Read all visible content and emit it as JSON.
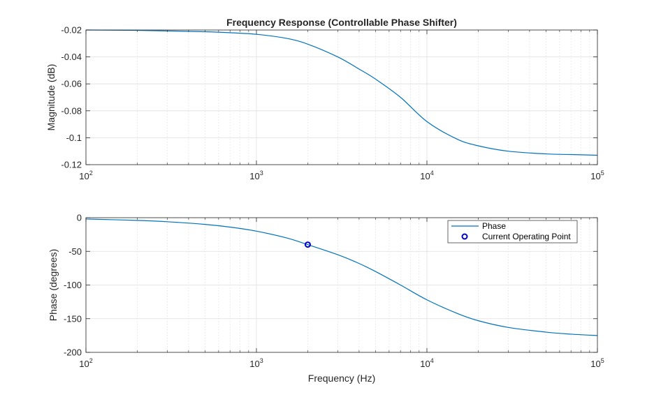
{
  "chart_data": [
    {
      "type": "line",
      "title": "Frequency Response (Controllable Phase Shifter)",
      "xlabel": "",
      "ylabel": "Magnitude (dB)",
      "xscale": "log",
      "xlim": [
        100,
        100000
      ],
      "ylim": [
        -0.12,
        -0.02
      ],
      "grid": true,
      "x_ticks": [
        {
          "label": "10",
          "exp": "2"
        },
        {
          "label": "10",
          "exp": "3"
        },
        {
          "label": "10",
          "exp": "4"
        },
        {
          "label": "10",
          "exp": "5"
        }
      ],
      "y_ticks": [
        "-0.02",
        "-0.04",
        "-0.06",
        "-0.08",
        "-0.1",
        "-0.12"
      ],
      "series": [
        {
          "color": "#0072bd",
          "x": [
            100,
            200,
            300,
            500,
            700,
            1000,
            1500,
            2000,
            3000,
            4000,
            5000,
            7000,
            10000,
            15000,
            20000,
            30000,
            50000,
            70000,
            100000
          ],
          "y": [
            -0.02,
            -0.0203,
            -0.0207,
            -0.0213,
            -0.022,
            -0.0232,
            -0.0262,
            -0.0305,
            -0.04,
            -0.049,
            -0.0565,
            -0.07,
            -0.088,
            -0.101,
            -0.106,
            -0.11,
            -0.112,
            -0.1125,
            -0.113
          ]
        }
      ]
    },
    {
      "type": "line",
      "title": "",
      "xlabel": "Frequency (Hz)",
      "ylabel": "Phase (degrees)",
      "xscale": "log",
      "xlim": [
        100,
        100000
      ],
      "ylim": [
        -200,
        0
      ],
      "grid": true,
      "legend": "top-right",
      "x_ticks": [
        {
          "label": "10",
          "exp": "2"
        },
        {
          "label": "10",
          "exp": "3"
        },
        {
          "label": "10",
          "exp": "4"
        },
        {
          "label": "10",
          "exp": "5"
        }
      ],
      "y_ticks": [
        "0",
        "-50",
        "-100",
        "-150",
        "-200"
      ],
      "series": [
        {
          "name": "Phase",
          "color": "#0072bd",
          "x": [
            100,
            200,
            300,
            500,
            700,
            1000,
            1500,
            2000,
            3000,
            4000,
            5000,
            7000,
            10000,
            15000,
            20000,
            30000,
            50000,
            70000,
            100000
          ],
          "y": [
            -2,
            -4,
            -6,
            -10,
            -14,
            -20,
            -30,
            -40,
            -55,
            -68,
            -80,
            -100,
            -122,
            -142,
            -153,
            -163,
            -170,
            -173,
            -175
          ]
        },
        {
          "name": "Current Operating Point",
          "color": "#0000cc",
          "marker": "circle",
          "x": [
            2000
          ],
          "y": [
            -40
          ]
        }
      ]
    }
  ]
}
